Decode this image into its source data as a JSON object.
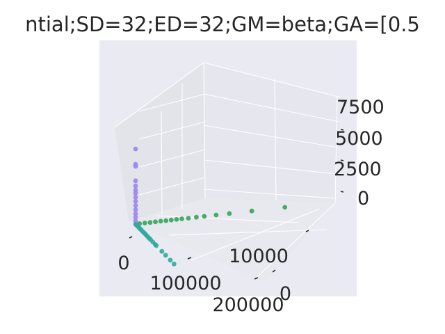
{
  "chart_data": {
    "type": "scatter",
    "projection": "3d",
    "title": "ntial;SD=32;ED=32;GM=beta;GA=[0.5",
    "xlabel": "",
    "ylabel": "",
    "zlabel": "",
    "grid": true,
    "background": "#eaeaf2",
    "x_ticks": [
      "0",
      "100000",
      "200000"
    ],
    "y_ticks": [
      "0",
      "10000"
    ],
    "z_ticks": [
      "0",
      "2500",
      "5000",
      "7500"
    ],
    "series": [
      {
        "color": "#9a84f2",
        "points": [
          [
            0,
            0,
            0
          ],
          [
            0,
            0,
            300
          ],
          [
            0,
            0,
            650
          ],
          [
            0,
            0,
            1000
          ],
          [
            0,
            0,
            1400
          ],
          [
            0,
            0,
            1800
          ],
          [
            0,
            0,
            2200
          ],
          [
            0,
            0,
            2600
          ],
          [
            0,
            0,
            3000
          ],
          [
            0,
            0,
            3300
          ],
          [
            0,
            0,
            3700
          ],
          [
            0,
            0,
            4200
          ],
          [
            0,
            0,
            5600
          ],
          [
            0,
            0,
            5800
          ],
          [
            0,
            0,
            7300
          ]
        ]
      },
      {
        "color": "#33a65a",
        "points": [
          [
            0,
            300,
            0
          ],
          [
            0,
            700,
            0
          ],
          [
            0,
            1100,
            0
          ],
          [
            0,
            1500,
            0
          ],
          [
            0,
            1900,
            0
          ],
          [
            0,
            2300,
            0
          ],
          [
            0,
            2700,
            0
          ],
          [
            0,
            3100,
            0
          ],
          [
            0,
            3500,
            0
          ],
          [
            0,
            4000,
            0
          ],
          [
            0,
            4600,
            0
          ],
          [
            0,
            5200,
            0
          ],
          [
            0,
            6100,
            0
          ],
          [
            0,
            7100,
            0
          ],
          [
            0,
            8800,
            0
          ],
          [
            0,
            11300,
            0
          ]
        ]
      },
      {
        "color": "#32a89c",
        "points": [
          [
            2000,
            0,
            0
          ],
          [
            5000,
            0,
            0
          ],
          [
            9000,
            0,
            0
          ],
          [
            14000,
            0,
            0
          ],
          [
            19000,
            0,
            0
          ],
          [
            25000,
            0,
            0
          ],
          [
            32000,
            0,
            0
          ],
          [
            40000,
            0,
            0
          ],
          [
            48000,
            0,
            0
          ],
          [
            55000,
            0,
            0
          ],
          [
            63000,
            0,
            0
          ],
          [
            72000,
            0,
            0
          ],
          [
            80000,
            0,
            0
          ],
          [
            92000,
            0,
            0
          ],
          [
            105000,
            0,
            0
          ],
          [
            110000,
            0,
            0
          ],
          [
            140000,
            0,
            0
          ],
          [
            160000,
            0,
            0
          ],
          [
            185000,
            0,
            0
          ],
          [
            205000,
            0,
            0
          ]
        ]
      }
    ]
  }
}
